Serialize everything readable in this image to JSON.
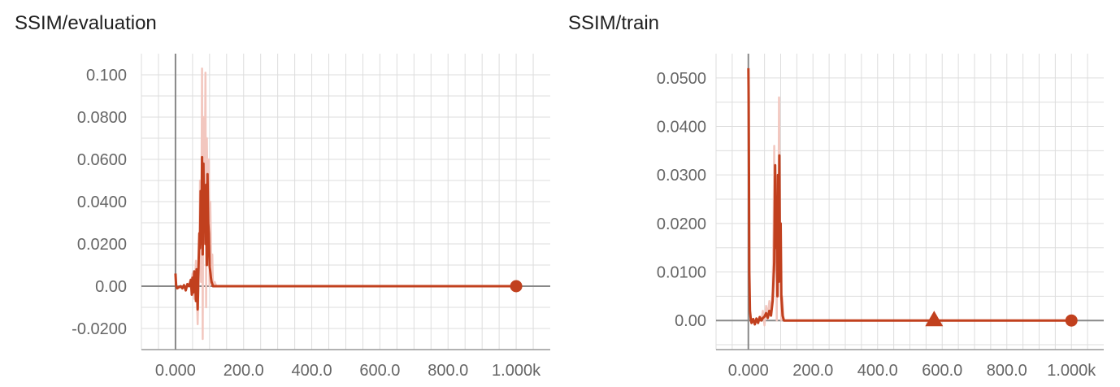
{
  "chart_data": [
    {
      "type": "line",
      "title": "SSIM/evaluation",
      "xlabel": "",
      "ylabel": "",
      "xlim": [
        -100,
        1100
      ],
      "ylim": [
        -0.03,
        0.11
      ],
      "x_ticks": [
        0,
        200,
        400,
        600,
        800,
        1000
      ],
      "x_tick_labels": [
        "0.000",
        "200.0",
        "400.0",
        "600.0",
        "800.0",
        "1.000k"
      ],
      "y_ticks": [
        0.1,
        0.08,
        0.06,
        0.04,
        0.02,
        0,
        -0.02
      ],
      "y_tick_labels": [
        "0.100",
        "0.0800",
        "0.0600",
        "0.0400",
        "0.0200",
        "0.00",
        "-0.0200"
      ],
      "grid": true,
      "colors": {
        "series": "#c1401e",
        "raw": "#f2c7bf",
        "grid": "#dddddd",
        "axis": "#999999",
        "zero_axis": "#888888"
      },
      "series": [
        {
          "smoothed": {
            "x": [
              0,
              1,
              2,
              5,
              10,
              15,
              20,
              25,
              30,
              35,
              40,
              45,
              48,
              50,
              52,
              55,
              58,
              60,
              62,
              65,
              68,
              70,
              72,
              74,
              76,
              78,
              80,
              82,
              84,
              86,
              88,
              90,
              92,
              94,
              96,
              98,
              100,
              102,
              104,
              106,
              108,
              110,
              115,
              120,
              1000
            ],
            "y": [
              0.006,
              0.003,
              0.0,
              -0.001,
              -0.0005,
              0.0,
              -0.001,
              0.0005,
              -0.002,
              0.001,
              0.0,
              0.003,
              -0.004,
              0.004,
              -0.003,
              0.007,
              0.002,
              -0.007,
              0.008,
              -0.011,
              0.012,
              0.025,
              0.018,
              0.045,
              0.02,
              0.061,
              0.015,
              0.058,
              0.03,
              0.045,
              0.02,
              0.048,
              0.01,
              0.053,
              0.03,
              0.025,
              0.01,
              0.007,
              0.004,
              0.002,
              0.001,
              0.0,
              0.0,
              0.0,
              0.0
            ]
          },
          "raw": {
            "x": [
              45,
              50,
              55,
              60,
              65,
              70,
              72,
              75,
              78,
              80,
              82,
              85,
              88,
              90,
              92,
              95,
              98,
              100,
              102,
              105,
              108,
              110,
              115,
              120
            ],
            "y": [
              0.0,
              0.006,
              -0.006,
              0.012,
              -0.018,
              0.02,
              0.05,
              0.002,
              0.103,
              -0.025,
              0.08,
              0.02,
              0.101,
              -0.01,
              0.07,
              0.03,
              0.06,
              0.0,
              0.04,
              0.01,
              0.015,
              0.0,
              0.002,
              0.0
            ]
          },
          "endpoint": {
            "x": 1000,
            "y": 0.0,
            "marker": "circle"
          }
        }
      ]
    },
    {
      "type": "line",
      "title": "SSIM/train",
      "xlabel": "",
      "ylabel": "",
      "xlim": [
        -100,
        1100
      ],
      "ylim": [
        -0.006,
        0.055
      ],
      "x_ticks": [
        0,
        200,
        400,
        600,
        800,
        1000
      ],
      "x_tick_labels": [
        "0.000",
        "200.0",
        "400.0",
        "600.0",
        "800.0",
        "1.000k"
      ],
      "y_ticks": [
        0.05,
        0.04,
        0.03,
        0.02,
        0.01,
        0
      ],
      "y_tick_labels": [
        "0.0500",
        "0.0400",
        "0.0300",
        "0.0200",
        "0.0100",
        "0.00"
      ],
      "grid": true,
      "colors": {
        "series": "#c1401e",
        "raw": "#f2c7bf",
        "grid": "#dddddd",
        "axis": "#999999",
        "zero_axis": "#888888"
      },
      "series": [
        {
          "smoothed": {
            "x": [
              0,
              1,
              2,
              3,
              5,
              8,
              10,
              15,
              20,
              25,
              30,
              35,
              40,
              45,
              50,
              55,
              60,
              65,
              70,
              75,
              80,
              83,
              86,
              88,
              90,
              92,
              94,
              96,
              98,
              100,
              102,
              104,
              106,
              108,
              110,
              115,
              120,
              1000
            ],
            "y": [
              0.052,
              0.046,
              0.03,
              0.01,
              0.002,
              0.0,
              -0.0005,
              0.0003,
              -0.0008,
              0.0004,
              -0.0005,
              0.0007,
              0.0,
              0.0005,
              0.0008,
              0.0015,
              0.0005,
              0.002,
              0.001,
              0.004,
              0.012,
              0.032,
              0.015,
              0.025,
              0.005,
              0.03,
              0.008,
              0.034,
              0.01,
              0.02,
              0.005,
              0.003,
              0.001,
              0.0005,
              0.0,
              0.0,
              0.0,
              0.0
            ]
          },
          "raw": {
            "x": [
              40,
              45,
              50,
              55,
              60,
              65,
              70,
              75,
              78,
              80,
              82,
              85,
              88,
              90,
              92,
              95,
              98,
              100,
              102,
              105,
              108,
              110
            ],
            "y": [
              0.0,
              0.002,
              -0.001,
              0.003,
              0.001,
              0.004,
              0.002,
              0.006,
              0.02,
              0.036,
              0.01,
              0.025,
              0.0,
              0.03,
              0.005,
              0.046,
              0.008,
              0.02,
              0.0,
              0.005,
              0.001,
              0.0
            ]
          },
          "endpoint": {
            "x": 1000,
            "y": 0.0,
            "marker": "circle"
          },
          "hover_marker": {
            "x": 575,
            "y": 0.0,
            "marker": "triangle"
          }
        }
      ]
    }
  ]
}
